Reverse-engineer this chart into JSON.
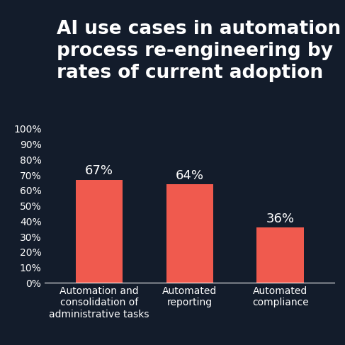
{
  "title": "AI use cases in automation &\nprocess re-engineering by\nrates of current adoption",
  "categories": [
    "Automation and\nconsolidation of\nadministrative tasks",
    "Automated\nreporting",
    "Automated\ncompliance"
  ],
  "values": [
    67,
    64,
    36
  ],
  "bar_color": "#f05a4e",
  "background_color": "#131c2b",
  "text_color": "#ffffff",
  "axis_text_color": "#ffffff",
  "ytick_labels": [
    "0%",
    "10%",
    "20%",
    "30%",
    "40%",
    "50%",
    "60%",
    "70%",
    "80%",
    "90%",
    "100%"
  ],
  "ytick_values": [
    0,
    10,
    20,
    30,
    40,
    50,
    60,
    70,
    80,
    90,
    100
  ],
  "ylim": [
    0,
    100
  ],
  "title_fontsize": 19,
  "bar_label_fontsize": 13,
  "tick_label_fontsize": 10,
  "xlabel_fontsize": 10
}
